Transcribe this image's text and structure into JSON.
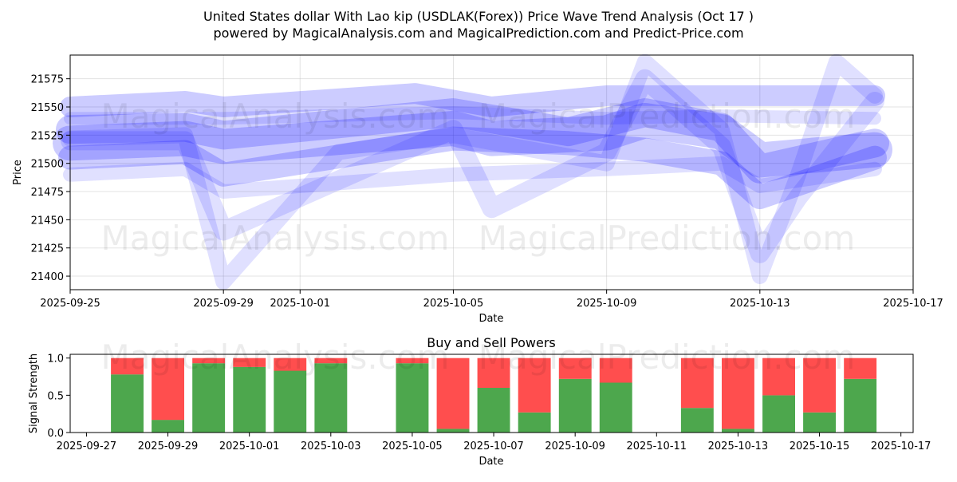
{
  "title_line1": "United States dollar With Lao kip (USDLAK(Forex)) Price Wave Trend Analysis (Oct 17 )",
  "title_line2": "powered by MagicalAnalysis.com and MagicalPrediction.com and Predict-Price.com",
  "watermark_left": "MagicalAnalysis.com",
  "watermark_right": "MagicalPrediction.com",
  "colors": {
    "wave": "#0000ff",
    "buy": "#3a9d3a",
    "sell": "#ff4444"
  },
  "chart_data": [
    {
      "type": "line",
      "title": "",
      "xlabel": "Date",
      "ylabel": "Price",
      "x_ticks": [
        "2025-09-25",
        "2025-09-29",
        "2025-10-01",
        "2025-10-05",
        "2025-10-09",
        "2025-10-13",
        "2025-10-17"
      ],
      "y_ticks": [
        "21400",
        "21425",
        "21450",
        "21475",
        "21500",
        "21525",
        "21550",
        "21575"
      ],
      "xlim": [
        "2025-09-25",
        "2025-10-17"
      ],
      "ylim": [
        21388,
        21596
      ],
      "grid": true,
      "series": [
        {
          "x": [
            "2025-09-25",
            "2025-09-28",
            "2025-09-29",
            "2025-10-05",
            "2025-10-06",
            "2025-10-09",
            "2025-10-10",
            "2025-10-12",
            "2025-10-13",
            "2025-10-16"
          ],
          "values": [
            21518,
            21522,
            21515,
            21531,
            21522,
            21527,
            21538,
            21528,
            21503,
            21512
          ]
        },
        {
          "x": [
            "2025-09-25",
            "2025-09-28",
            "2025-09-29",
            "2025-10-05",
            "2025-10-08",
            "2025-10-10",
            "2025-10-12",
            "2025-10-13",
            "2025-10-16"
          ],
          "values": [
            21530,
            21532,
            21525,
            21545,
            21528,
            21545,
            21532,
            21495,
            21518
          ]
        },
        {
          "x": [
            "2025-09-25",
            "2025-09-28",
            "2025-09-29",
            "2025-10-05",
            "2025-10-08",
            "2025-10-10",
            "2025-10-12",
            "2025-10-13",
            "2025-10-16"
          ],
          "values": [
            21505,
            21510,
            21490,
            21522,
            21518,
            21512,
            21500,
            21470,
            21505
          ]
        },
        {
          "x": [
            "2025-09-25",
            "2025-09-28",
            "2025-09-29",
            "2025-10-04",
            "2025-10-06",
            "2025-10-09",
            "2025-10-12",
            "2025-10-13",
            "2025-10-16"
          ],
          "values": [
            21550,
            21555,
            21550,
            21562,
            21550,
            21560,
            21560,
            21560,
            21560
          ]
        },
        {
          "x": [
            "2025-09-25",
            "2025-09-28",
            "2025-09-29",
            "2025-10-05",
            "2025-10-06",
            "2025-10-09",
            "2025-10-10",
            "2025-10-12",
            "2025-10-13",
            "2025-10-14",
            "2025-10-16"
          ],
          "values": [
            21520,
            21520,
            21440,
            21530,
            21460,
            21510,
            21575,
            21515,
            21420,
            21470,
            21555
          ]
        },
        {
          "x": [
            "2025-09-25",
            "2025-09-28",
            "2025-09-29",
            "2025-10-02",
            "2025-10-05",
            "2025-10-09",
            "2025-10-10",
            "2025-10-12",
            "2025-10-13",
            "2025-10-14",
            "2025-10-15",
            "2025-10-16"
          ],
          "values": [
            21522,
            21525,
            21395,
            21510,
            21525,
            21500,
            21590,
            21530,
            21400,
            21490,
            21590,
            21560
          ]
        },
        {
          "x": [
            "2025-09-25",
            "2025-09-28",
            "2025-09-29",
            "2025-10-05",
            "2025-10-09",
            "2025-10-12",
            "2025-10-13",
            "2025-10-16"
          ],
          "values": [
            21490,
            21495,
            21475,
            21490,
            21495,
            21500,
            21480,
            21495
          ]
        },
        {
          "x": [
            "2025-09-25",
            "2025-09-29",
            "2025-10-05",
            "2025-10-09",
            "2025-10-12",
            "2025-10-16"
          ],
          "values": [
            21540,
            21540,
            21545,
            21540,
            21542,
            21540
          ]
        }
      ]
    },
    {
      "type": "bar",
      "title": "Buy and Sell Powers",
      "xlabel": "Date",
      "ylabel": "Signal Strength",
      "x_ticks": [
        "2025-09-27",
        "2025-09-29",
        "2025-10-01",
        "2025-10-03",
        "2025-10-05",
        "2025-10-07",
        "2025-10-09",
        "2025-10-11",
        "2025-10-13",
        "2025-10-15",
        "2025-10-17"
      ],
      "y_ticks": [
        "0.0",
        "0.5",
        "1.0"
      ],
      "xlim": [
        "2025-09-26.6",
        "2025-10-17.3"
      ],
      "ylim": [
        0,
        1.05
      ],
      "bars": [
        {
          "date": "2025-09-28",
          "buy": 0.78,
          "sell": 0.22
        },
        {
          "date": "2025-09-29",
          "buy": 0.17,
          "sell": 0.83
        },
        {
          "date": "2025-09-30",
          "buy": 0.93,
          "sell": 0.07
        },
        {
          "date": "2025-10-01",
          "buy": 0.88,
          "sell": 0.12
        },
        {
          "date": "2025-10-02",
          "buy": 0.83,
          "sell": 0.17
        },
        {
          "date": "2025-10-03",
          "buy": 0.93,
          "sell": 0.07
        },
        {
          "date": "2025-10-05",
          "buy": 0.93,
          "sell": 0.07
        },
        {
          "date": "2025-10-06",
          "buy": 0.05,
          "sell": 0.95
        },
        {
          "date": "2025-10-07",
          "buy": 0.6,
          "sell": 0.4
        },
        {
          "date": "2025-10-08",
          "buy": 0.27,
          "sell": 0.73
        },
        {
          "date": "2025-10-09",
          "buy": 0.72,
          "sell": 0.28
        },
        {
          "date": "2025-10-10",
          "buy": 0.67,
          "sell": 0.33
        },
        {
          "date": "2025-10-12",
          "buy": 0.33,
          "sell": 0.67
        },
        {
          "date": "2025-10-13",
          "buy": 0.05,
          "sell": 0.95
        },
        {
          "date": "2025-10-14",
          "buy": 0.5,
          "sell": 0.5
        },
        {
          "date": "2025-10-15",
          "buy": 0.27,
          "sell": 0.73
        },
        {
          "date": "2025-10-16",
          "buy": 0.72,
          "sell": 0.28
        }
      ]
    }
  ]
}
